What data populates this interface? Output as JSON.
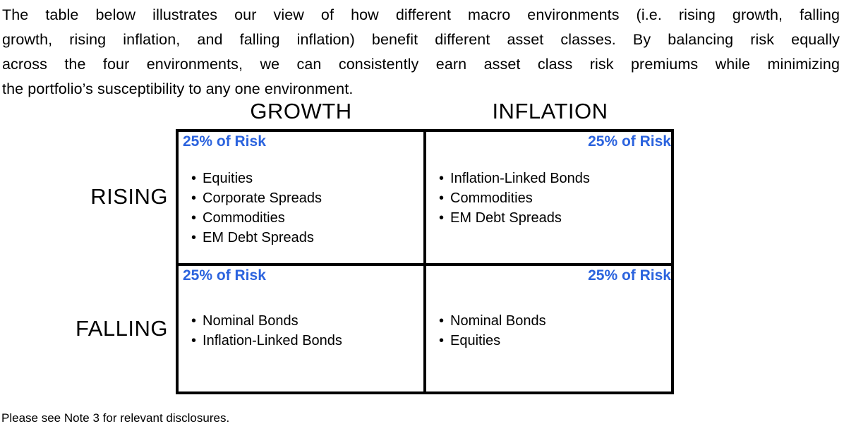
{
  "page": {
    "intro_lines": [
      "The table below illustrates our view of how different macro environments (i.e. rising growth, falling",
      "growth, rising inflation, and falling inflation) benefit different asset classes.  By balancing risk equally",
      "across the four environments, we can consistently earn asset class risk premiums while minimizing",
      "the portfolio’s susceptibility to any one environment."
    ],
    "footnote": "Please see Note 3 for relevant disclosures."
  },
  "matrix": {
    "column_headers": [
      "GROWTH",
      "INFLATION"
    ],
    "row_headers": [
      "RISING",
      "FALLING"
    ],
    "risk_color": "#2B63DE",
    "border_color": "#000000",
    "cells": {
      "rising_growth": {
        "risk_label": "25% of Risk",
        "assets": [
          "Equities",
          "Corporate Spreads",
          "Commodities",
          "EM Debt Spreads"
        ]
      },
      "rising_inflation": {
        "risk_label": "25% of Risk",
        "assets": [
          "Inflation-Linked Bonds",
          "Commodities",
          "EM Debt Spreads"
        ]
      },
      "falling_growth": {
        "risk_label": "25% of Risk",
        "assets": [
          "Nominal Bonds",
          "Inflation-Linked Bonds"
        ]
      },
      "falling_inflation": {
        "risk_label": "25% of Risk",
        "assets": [
          "Nominal Bonds",
          "Equities"
        ]
      }
    }
  }
}
